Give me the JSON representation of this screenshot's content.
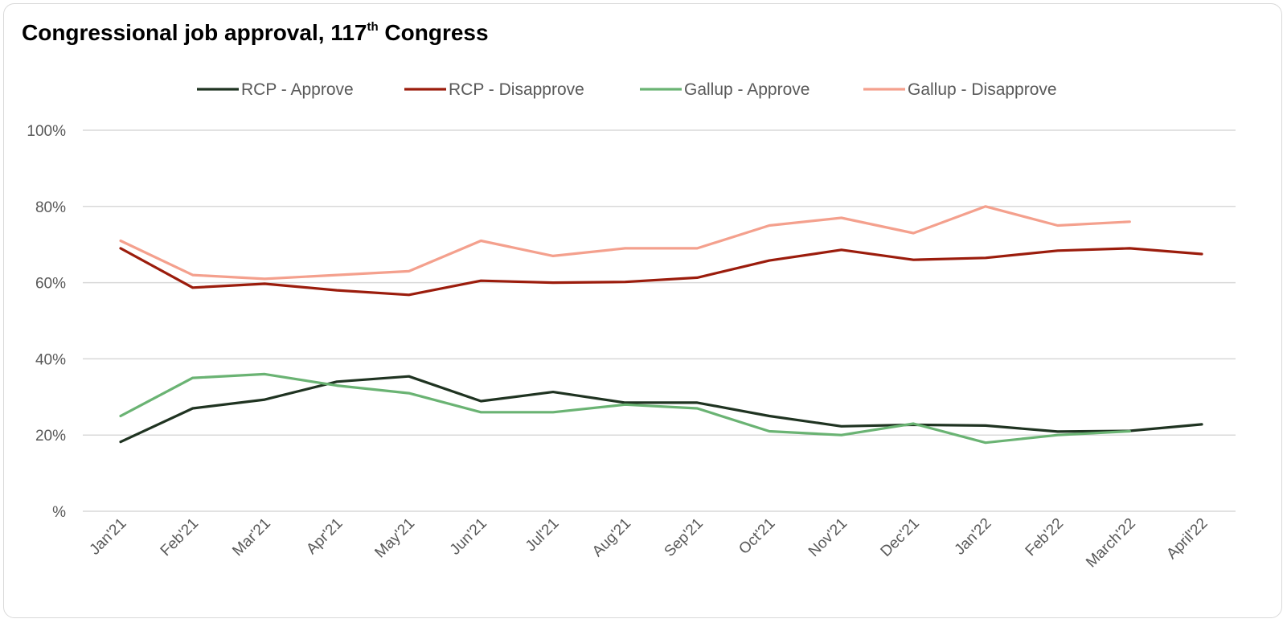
{
  "chart_data": {
    "type": "line",
    "title_main": "Congressional job approval, 117",
    "title_sup": "th",
    "title_end": " Congress",
    "categories": [
      "Jan'21",
      "Feb'21",
      "Mar'21",
      "Apr'21",
      "May'21",
      "Jun'21",
      "Jul'21",
      "Aug'21",
      "Sep'21",
      "Oct'21",
      "Nov'21",
      "Dec'21",
      "Jan'22",
      "Feb'22",
      "March'22",
      "April'22"
    ],
    "ylim": [
      0,
      100
    ],
    "yticks": [
      0,
      20,
      40,
      60,
      80,
      100
    ],
    "ytick_labels": [
      "%",
      "20%",
      "40%",
      "60%",
      "80%",
      "100%"
    ],
    "grid": true,
    "legend_position": "top",
    "series": [
      {
        "name": "RCP - Approve",
        "color": "#1f3321",
        "values": [
          18.2,
          27,
          29.3,
          34,
          35.4,
          28.9,
          31.3,
          28.5,
          28.5,
          25,
          22.3,
          22.7,
          22.5,
          20.9,
          21.1,
          22.8
        ]
      },
      {
        "name": "RCP - Disapprove",
        "color": "#9b1c0c",
        "values": [
          69,
          58.7,
          59.7,
          58,
          56.8,
          60.5,
          60,
          60.2,
          61.3,
          65.8,
          68.6,
          66,
          66.5,
          68.4,
          69,
          67.5
        ]
      },
      {
        "name": "Gallup - Approve",
        "color": "#6ab373",
        "values": [
          25,
          35,
          36,
          33,
          31,
          26,
          26,
          28,
          27,
          21,
          20,
          23,
          18,
          20,
          21,
          null
        ]
      },
      {
        "name": "Gallup - Disapprove",
        "color": "#f4a08d",
        "values": [
          71,
          62,
          61,
          62,
          63,
          71,
          67,
          69,
          69,
          75,
          77,
          73,
          80,
          75,
          76,
          null
        ]
      }
    ]
  }
}
